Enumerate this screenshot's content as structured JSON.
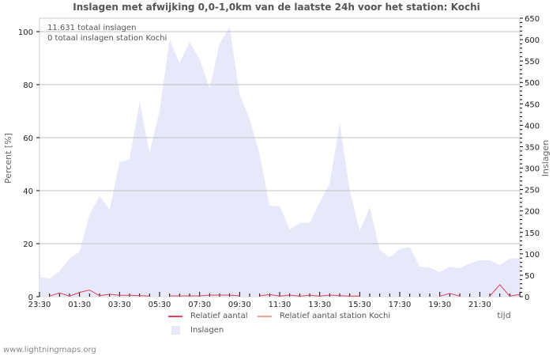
{
  "title": "Inslagen met afwijking 0,0-1,0km van de laatste 24h voor het station: Kochi",
  "info": {
    "total": "11.631 totaal inslagen",
    "station_total": "0 totaal inslagen station Kochi"
  },
  "legend": {
    "relatief": "Relatief aantal",
    "relatief_station": "Relatief aantal station Kochi",
    "inslagen": "Inslagen"
  },
  "footer": "www.lightningmaps.org",
  "colors": {
    "area": "#e8e8fb",
    "relatief": "#d9435a",
    "relatief_station": "#f4a0a8",
    "grid": "#c0c0c0",
    "axis": "#cccccc"
  },
  "chart_data": {
    "type": "area",
    "title": "Inslagen met afwijking 0,0-1,0km van de laatste 24h voor het station: Kochi",
    "xlabel": "tijd",
    "ylabel": "Percent   [%]",
    "y2label": "Inslagen",
    "x_tick_labels": [
      "23:30",
      "01:30",
      "03:30",
      "05:30",
      "07:30",
      "09:30",
      "11:30",
      "13:30",
      "15:30",
      "17:30",
      "19:30",
      "21:30"
    ],
    "y_ticks": [
      0,
      20,
      40,
      60,
      80,
      100
    ],
    "y2_ticks": [
      0,
      50,
      100,
      150,
      200,
      250,
      300,
      350,
      400,
      450,
      500,
      550,
      600,
      650
    ],
    "ylim": [
      0,
      105
    ],
    "y2lim": [
      0,
      650
    ],
    "grid": true,
    "legend_position": "bottom",
    "interval_minutes": 30,
    "start": "23:30",
    "series": [
      {
        "name": "Inslagen",
        "axis": "right",
        "kind": "area",
        "values": [
          46,
          42,
          59,
          89,
          105,
          192,
          235,
          203,
          314,
          321,
          456,
          336,
          434,
          600,
          545,
          595,
          554,
          486,
          591,
          630,
          471,
          415,
          332,
          212,
          212,
          157,
          172,
          172,
          220,
          264,
          406,
          249,
          153,
          209,
          109,
          92,
          111,
          116,
          70,
          68,
          57,
          70,
          66,
          78,
          85,
          85,
          74,
          89,
          90
        ]
      },
      {
        "name": "Relatief aantal",
        "axis": "left",
        "kind": "line",
        "values": [
          null,
          0.2,
          1.4,
          0.2,
          1.6,
          2.5,
          0.4,
          0.9,
          0.5,
          0.5,
          0.4,
          0.2,
          null,
          0.3,
          0.3,
          0.3,
          0.3,
          0.6,
          0.6,
          0.6,
          0.3,
          null,
          0.3,
          0.8,
          0.2,
          0.6,
          0.2,
          0.5,
          0.2,
          0.6,
          0.4,
          0.2,
          0.2,
          null,
          null,
          null,
          null,
          null,
          null,
          null,
          0.2,
          1.2,
          0.2,
          null,
          null,
          0.2,
          4.5,
          0.2,
          0.8
        ]
      },
      {
        "name": "Relatief aantal station Kochi",
        "axis": "left",
        "kind": "line",
        "values": []
      }
    ]
  }
}
